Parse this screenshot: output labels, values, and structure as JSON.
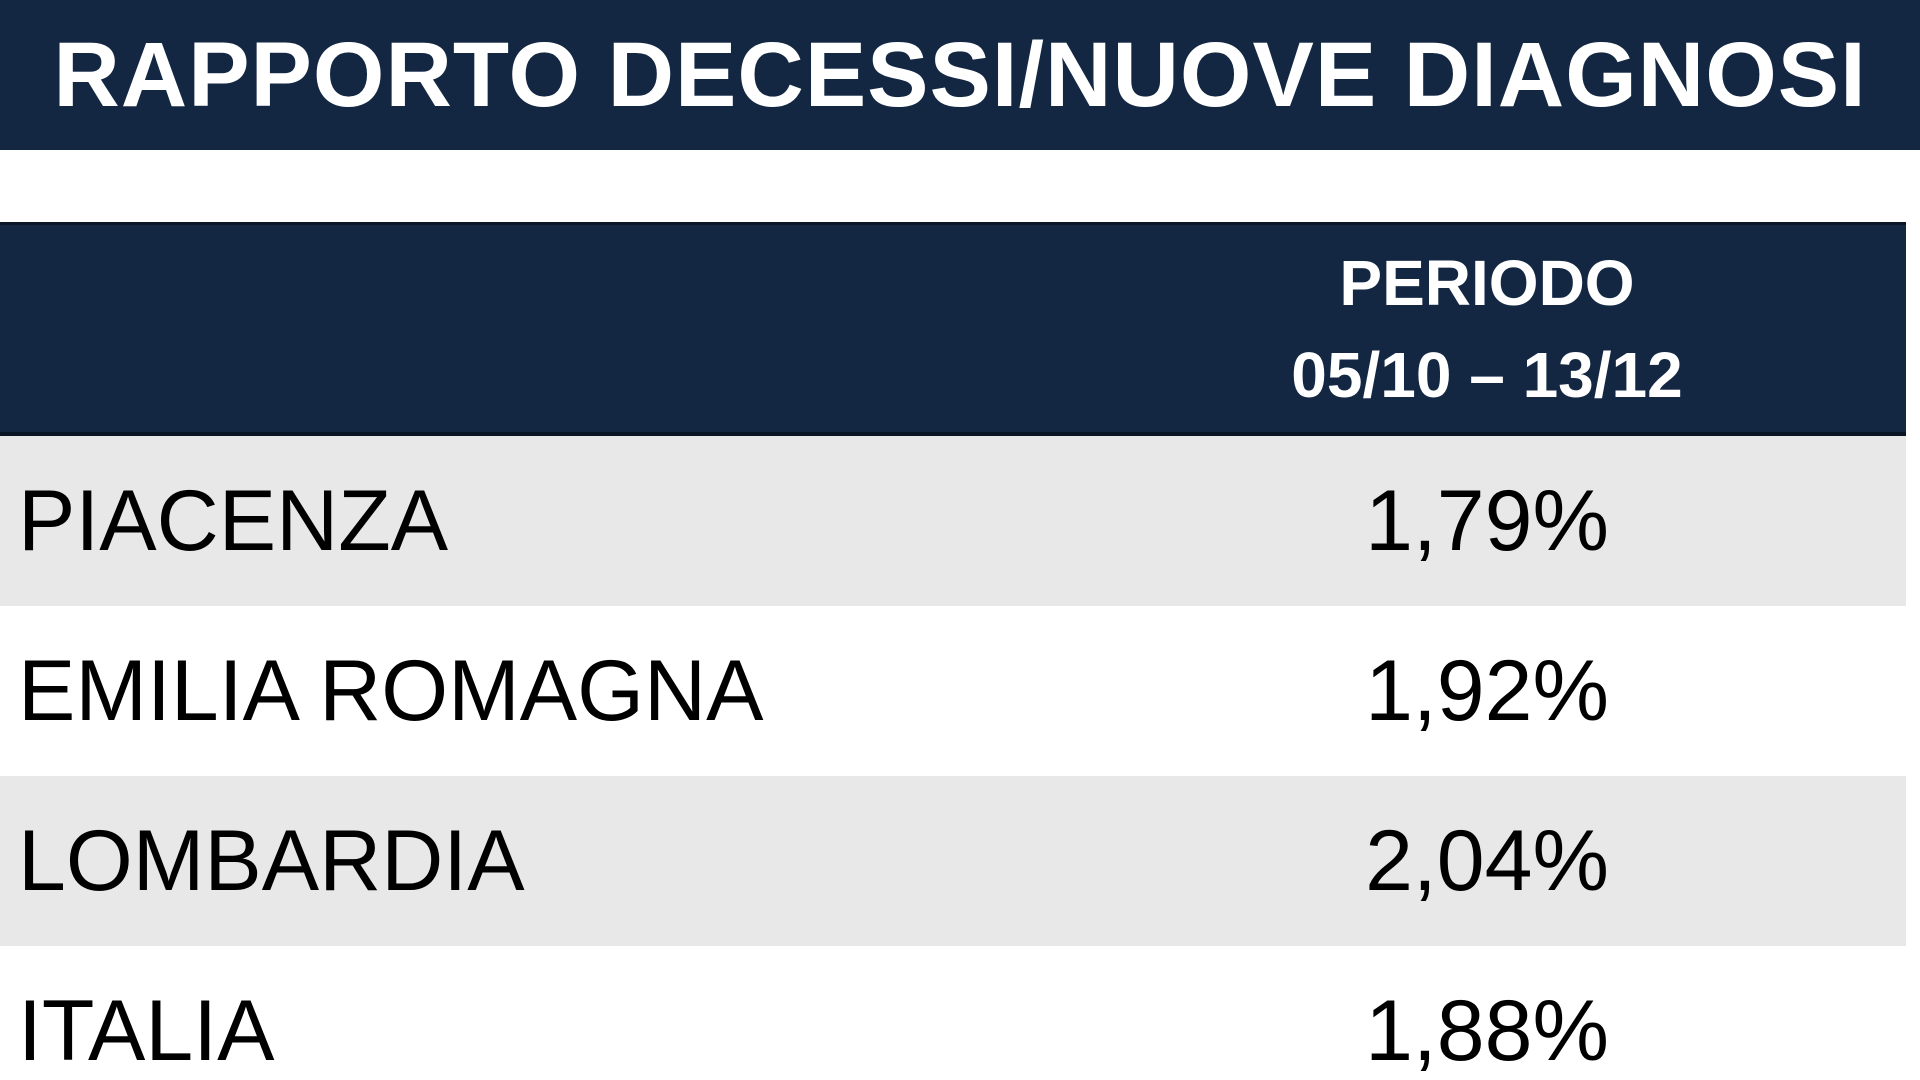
{
  "title": "RAPPORTO DECESSI/NUOVE DIAGNOSI",
  "table": {
    "header": {
      "line1": "PERIODO",
      "line2": "05/10 – 13/12"
    },
    "rows": [
      {
        "label": "PIACENZA",
        "value": "1,79%"
      },
      {
        "label": "EMILIA ROMAGNA",
        "value": "1,92%"
      },
      {
        "label": "LOMBARDIA",
        "value": "2,04%"
      },
      {
        "label": "ITALIA",
        "value": "1,88%"
      }
    ]
  },
  "colors": {
    "header_bg": "#132743",
    "row_shade": "#e8e8e8"
  }
}
